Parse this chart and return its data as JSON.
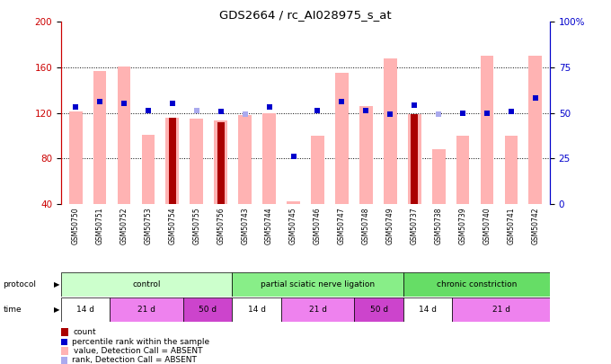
{
  "title": "GDS2664 / rc_AI028975_s_at",
  "samples": [
    "GSM50750",
    "GSM50751",
    "GSM50752",
    "GSM50753",
    "GSM50754",
    "GSM50755",
    "GSM50756",
    "GSM50743",
    "GSM50744",
    "GSM50745",
    "GSM50746",
    "GSM50747",
    "GSM50748",
    "GSM50749",
    "GSM50737",
    "GSM50738",
    "GSM50739",
    "GSM50740",
    "GSM50741",
    "GSM50742"
  ],
  "pink_bars": [
    121,
    157,
    161,
    101,
    116,
    115,
    113,
    118,
    120,
    42,
    100,
    155,
    126,
    168,
    119,
    88,
    100,
    170,
    100,
    170
  ],
  "dark_red_bars": [
    0,
    0,
    0,
    0,
    116,
    0,
    112,
    0,
    0,
    0,
    0,
    0,
    0,
    0,
    119,
    0,
    0,
    0,
    0,
    0
  ],
  "blue_markers": [
    125,
    130,
    128,
    122,
    128,
    0,
    121,
    0,
    125,
    82,
    122,
    130,
    122,
    119,
    127,
    0,
    120,
    120,
    121,
    133
  ],
  "light_blue_markers": [
    125,
    130,
    128,
    122,
    0,
    122,
    0,
    119,
    125,
    82,
    122,
    130,
    122,
    119,
    0,
    119,
    120,
    120,
    121,
    133
  ],
  "ylim_left": [
    40,
    200
  ],
  "ylim_right": [
    0,
    100
  ],
  "yticks_left": [
    40,
    80,
    120,
    160,
    200
  ],
  "yticks_right": [
    0,
    25,
    50,
    75,
    100
  ],
  "ytick_right_labels": [
    "0",
    "25",
    "50",
    "75",
    "100%"
  ],
  "protocol_groups": [
    {
      "label": "control",
      "start": 0,
      "end": 7,
      "color": "#ccffcc"
    },
    {
      "label": "partial sciatic nerve ligation",
      "start": 7,
      "end": 14,
      "color": "#88ee88"
    },
    {
      "label": "chronic constriction",
      "start": 14,
      "end": 20,
      "color": "#66dd66"
    }
  ],
  "time_groups": [
    {
      "label": "14 d",
      "start": 0,
      "end": 2,
      "color": "#ffffff"
    },
    {
      "label": "21 d",
      "start": 2,
      "end": 5,
      "color": "#ee82ee"
    },
    {
      "label": "50 d",
      "start": 5,
      "end": 7,
      "color": "#cc44cc"
    },
    {
      "label": "14 d",
      "start": 7,
      "end": 9,
      "color": "#ffffff"
    },
    {
      "label": "21 d",
      "start": 9,
      "end": 12,
      "color": "#ee82ee"
    },
    {
      "label": "50 d",
      "start": 12,
      "end": 14,
      "color": "#cc44cc"
    },
    {
      "label": "14 d",
      "start": 14,
      "end": 16,
      "color": "#ffffff"
    },
    {
      "label": "21 d",
      "start": 16,
      "end": 20,
      "color": "#ee82ee"
    }
  ],
  "bar_width": 0.55,
  "pink_color": "#ffb3b3",
  "dark_red_color": "#aa0000",
  "blue_color": "#0000cc",
  "light_blue_color": "#aaaaee",
  "axis_left_color": "#cc0000",
  "axis_right_color": "#0000cc",
  "legend_items": [
    {
      "label": "count",
      "color": "#aa0000",
      "style": "square"
    },
    {
      "label": "percentile rank within the sample",
      "color": "#0000cc",
      "style": "square"
    },
    {
      "label": "value, Detection Call = ABSENT",
      "color": "#ffb3b3",
      "style": "square"
    },
    {
      "label": "rank, Detection Call = ABSENT",
      "color": "#aaaaee",
      "style": "square"
    }
  ]
}
